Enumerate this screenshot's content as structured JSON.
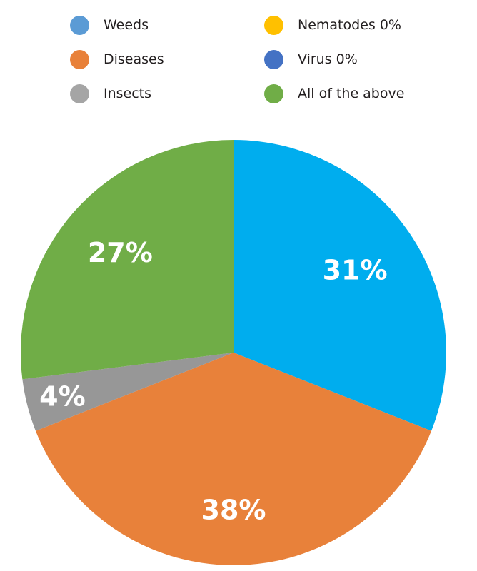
{
  "legend": {
    "items": [
      {
        "label": "Weeds",
        "color": "#5b9bd5"
      },
      {
        "label": "Diseases",
        "color": "#e8813a"
      },
      {
        "label": "Insects",
        "color": "#a5a5a5"
      },
      {
        "label": "Nematodes 0%",
        "color": "#ffc000"
      },
      {
        "label": "Virus 0%",
        "color": "#4472c4"
      },
      {
        "label": "All of the above",
        "color": "#70ad47"
      }
    ]
  },
  "chart_data": {
    "type": "pie",
    "slices": [
      {
        "category": "Weeds",
        "value": 31,
        "label": "31%",
        "color": "#00adee"
      },
      {
        "category": "Diseases",
        "value": 38,
        "label": "38%",
        "color": "#e8813a"
      },
      {
        "category": "Insects",
        "value": 4,
        "label": "4%",
        "color": "#979797"
      },
      {
        "category": "Nematodes",
        "value": 0,
        "label": "",
        "color": "#ffc000"
      },
      {
        "category": "Virus",
        "value": 0,
        "label": "",
        "color": "#4472c4"
      },
      {
        "category": "All of the above",
        "value": 27,
        "label": "27%",
        "color": "#70ad47"
      }
    ],
    "legend_position": "top"
  }
}
